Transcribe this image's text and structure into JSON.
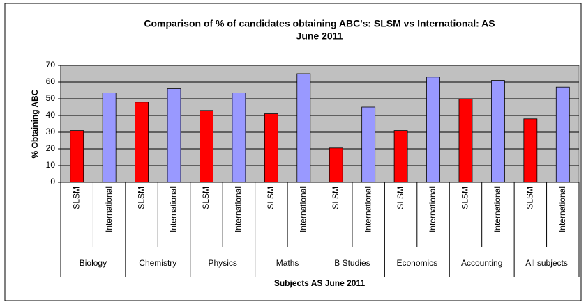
{
  "chart_data": {
    "type": "bar",
    "title": [
      "Comparison of % of candidates obtaining ABC's: SLSM vs International: AS",
      "June 2011"
    ],
    "y_label": "% Obtaining ABC",
    "x_label": "Subjects AS June 2011",
    "categories": [
      "Biology",
      "Chemistry",
      "Physics",
      "Maths",
      "B Studies",
      "Economics",
      "Accounting",
      "All subjects"
    ],
    "series": [
      {
        "name": "SLSM",
        "color": "#ff0000",
        "values": [
          31,
          48,
          43,
          41,
          20.5,
          31,
          50,
          38
        ]
      },
      {
        "name": "International",
        "color": "#9999ff",
        "values": [
          53.5,
          56,
          53.5,
          65,
          45,
          63,
          61,
          57
        ]
      }
    ],
    "ylim": [
      0,
      70
    ],
    "yticks": [
      0,
      10,
      20,
      30,
      40,
      50,
      60,
      70
    ],
    "grid": true,
    "plot_background": "#c0c0c0"
  }
}
